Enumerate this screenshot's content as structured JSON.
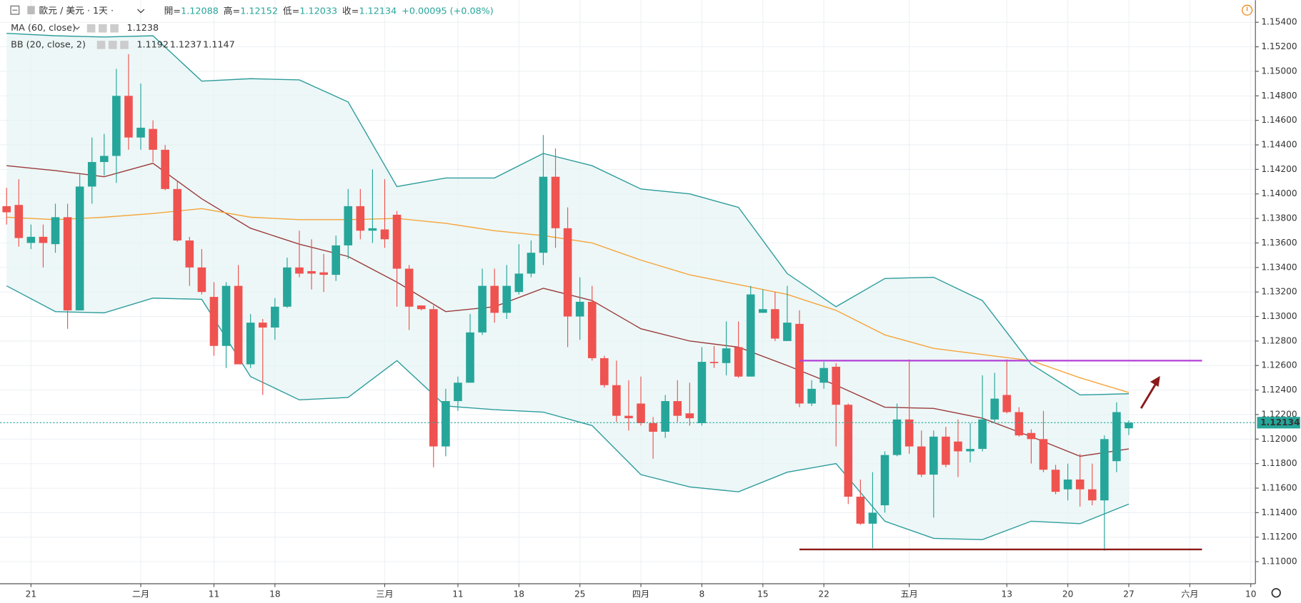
{
  "header": {
    "symbol": "歐元 / 美元 · 1天 ·",
    "open_label": "開=",
    "high_label": "高=",
    "low_label": "低=",
    "close_label": "收=",
    "change": "+0.00095 (+0.08%)"
  },
  "chart_data": {
    "type": "candlestick",
    "xlim": [
      -0.54,
      102.38
    ],
    "ylim": [
      1.1082,
      1.1558
    ],
    "yticks": [
      {
        "value": 1.11,
        "label": "1.11000"
      },
      {
        "value": 1.112,
        "label": "1.11200"
      },
      {
        "value": 1.114,
        "label": "1.11400"
      },
      {
        "value": 1.116,
        "label": "1.11600"
      },
      {
        "value": 1.118,
        "label": "1.11800"
      },
      {
        "value": 1.12,
        "label": "1.12000"
      },
      {
        "value": 1.122,
        "label": "1.12200"
      },
      {
        "value": 1.124,
        "label": "1.12400"
      },
      {
        "value": 1.126,
        "label": "1.12600"
      },
      {
        "value": 1.128,
        "label": "1.12800"
      },
      {
        "value": 1.13,
        "label": "1.13000"
      },
      {
        "value": 1.132,
        "label": "1.13200"
      },
      {
        "value": 1.134,
        "label": "1.13400"
      },
      {
        "value": 1.136,
        "label": "1.13600"
      },
      {
        "value": 1.138,
        "label": "1.13800"
      },
      {
        "value": 1.14,
        "label": "1.14000"
      },
      {
        "value": 1.142,
        "label": "1.14200"
      },
      {
        "value": 1.144,
        "label": "1.14400"
      },
      {
        "value": 1.146,
        "label": "1.14600"
      },
      {
        "value": 1.148,
        "label": "1.14800"
      },
      {
        "value": 1.15,
        "label": "1.15000"
      },
      {
        "value": 1.152,
        "label": "1.15200"
      },
      {
        "value": 1.154,
        "label": "1.15400"
      }
    ],
    "xticks": [
      {
        "value": 2,
        "label": "21"
      },
      {
        "value": 11,
        "label": "二月"
      },
      {
        "value": 17,
        "label": "11"
      },
      {
        "value": 22,
        "label": "18"
      },
      {
        "value": 31,
        "label": "三月"
      },
      {
        "value": 37,
        "label": "11"
      },
      {
        "value": 42,
        "label": "18"
      },
      {
        "value": 47,
        "label": "25"
      },
      {
        "value": 52,
        "label": "四月"
      },
      {
        "value": 57,
        "label": "8"
      },
      {
        "value": 62,
        "label": "15"
      },
      {
        "value": 67,
        "label": "22"
      },
      {
        "value": 74,
        "label": "五月"
      },
      {
        "value": 82,
        "label": "13"
      },
      {
        "value": 87,
        "label": "20"
      },
      {
        "value": 92,
        "label": "27"
      },
      {
        "value": 97,
        "label": "六月"
      },
      {
        "value": 102,
        "label": "10"
      }
    ],
    "up_color": "#26a69a",
    "down_color": "#ef5350",
    "grid": true,
    "candles": [
      {
        "open": 1.139,
        "high": 1.1405,
        "low": 1.1375,
        "close": 1.1385
      },
      {
        "open": 1.1391,
        "high": 1.1412,
        "low": 1.1357,
        "close": 1.1364
      },
      {
        "open": 1.136,
        "high": 1.1375,
        "low": 1.1355,
        "close": 1.1365
      },
      {
        "open": 1.1365,
        "high": 1.1375,
        "low": 1.134,
        "close": 1.136
      },
      {
        "open": 1.1359,
        "high": 1.1392,
        "low": 1.1352,
        "close": 1.1381
      },
      {
        "open": 1.1381,
        "high": 1.1392,
        "low": 1.129,
        "close": 1.1305
      },
      {
        "open": 1.1305,
        "high": 1.1416,
        "low": 1.1305,
        "close": 1.1406
      },
      {
        "open": 1.1406,
        "high": 1.1446,
        "low": 1.1392,
        "close": 1.1426
      },
      {
        "open": 1.1426,
        "high": 1.1449,
        "low": 1.1415,
        "close": 1.1431
      },
      {
        "open": 1.1431,
        "high": 1.1502,
        "low": 1.1409,
        "close": 1.148
      },
      {
        "open": 1.148,
        "high": 1.1514,
        "low": 1.1436,
        "close": 1.1446
      },
      {
        "open": 1.1446,
        "high": 1.149,
        "low": 1.1436,
        "close": 1.1454
      },
      {
        "open": 1.1453,
        "high": 1.146,
        "low": 1.1426,
        "close": 1.1436
      },
      {
        "open": 1.1436,
        "high": 1.144,
        "low": 1.1403,
        "close": 1.1404
      },
      {
        "open": 1.1404,
        "high": 1.141,
        "low": 1.1361,
        "close": 1.1362
      },
      {
        "open": 1.1362,
        "high": 1.1365,
        "low": 1.1325,
        "close": 1.134
      },
      {
        "open": 1.134,
        "high": 1.1355,
        "low": 1.1318,
        "close": 1.132
      },
      {
        "open": 1.1316,
        "high": 1.1328,
        "low": 1.1268,
        "close": 1.1276
      },
      {
        "open": 1.1276,
        "high": 1.1328,
        "low": 1.1258,
        "close": 1.1325
      },
      {
        "open": 1.1325,
        "high": 1.1342,
        "low": 1.1261,
        "close": 1.1261
      },
      {
        "open": 1.1261,
        "high": 1.1302,
        "low": 1.1258,
        "close": 1.1295
      },
      {
        "open": 1.1295,
        "high": 1.1298,
        "low": 1.1236,
        "close": 1.1291
      },
      {
        "open": 1.1291,
        "high": 1.1315,
        "low": 1.1281,
        "close": 1.1308
      },
      {
        "open": 1.1308,
        "high": 1.1348,
        "low": 1.1307,
        "close": 1.134
      },
      {
        "open": 1.134,
        "high": 1.137,
        "low": 1.1332,
        "close": 1.1335
      },
      {
        "open": 1.1337,
        "high": 1.1363,
        "low": 1.1322,
        "close": 1.1335
      },
      {
        "open": 1.1336,
        "high": 1.1351,
        "low": 1.132,
        "close": 1.1334
      },
      {
        "open": 1.1334,
        "high": 1.1366,
        "low": 1.1329,
        "close": 1.1358
      },
      {
        "open": 1.1358,
        "high": 1.1404,
        "low": 1.1347,
        "close": 1.139
      },
      {
        "open": 1.139,
        "high": 1.1404,
        "low": 1.1363,
        "close": 1.137
      },
      {
        "open": 1.137,
        "high": 1.142,
        "low": 1.136,
        "close": 1.1372
      },
      {
        "open": 1.1371,
        "high": 1.1412,
        "low": 1.1356,
        "close": 1.1363
      },
      {
        "open": 1.1383,
        "high": 1.1386,
        "low": 1.1308,
        "close": 1.1339
      },
      {
        "open": 1.1339,
        "high": 1.1342,
        "low": 1.1289,
        "close": 1.1308
      },
      {
        "open": 1.1309,
        "high": 1.1309,
        "low": 1.1305,
        "close": 1.1306
      },
      {
        "open": 1.1306,
        "high": 1.1309,
        "low": 1.1177,
        "close": 1.1194
      },
      {
        "open": 1.1194,
        "high": 1.1241,
        "low": 1.1186,
        "close": 1.1231
      },
      {
        "open": 1.1231,
        "high": 1.1251,
        "low": 1.1223,
        "close": 1.1246
      },
      {
        "open": 1.1246,
        "high": 1.1302,
        "low": 1.1246,
        "close": 1.1287
      },
      {
        "open": 1.1287,
        "high": 1.1339,
        "low": 1.1285,
        "close": 1.1325
      },
      {
        "open": 1.1325,
        "high": 1.1339,
        "low": 1.1295,
        "close": 1.1303
      },
      {
        "open": 1.1303,
        "high": 1.1342,
        "low": 1.1298,
        "close": 1.1325
      },
      {
        "open": 1.132,
        "high": 1.1359,
        "low": 1.1318,
        "close": 1.1335
      },
      {
        "open": 1.1335,
        "high": 1.1362,
        "low": 1.1332,
        "close": 1.1352
      },
      {
        "open": 1.1352,
        "high": 1.1448,
        "low": 1.1342,
        "close": 1.1414
      },
      {
        "open": 1.1414,
        "high": 1.1437,
        "low": 1.1356,
        "close": 1.1372
      },
      {
        "open": 1.1372,
        "high": 1.1389,
        "low": 1.1275,
        "close": 1.13
      },
      {
        "open": 1.13,
        "high": 1.1332,
        "low": 1.1281,
        "close": 1.1312
      },
      {
        "open": 1.1312,
        "high": 1.1325,
        "low": 1.1264,
        "close": 1.1266
      },
      {
        "open": 1.1266,
        "high": 1.1268,
        "low": 1.1242,
        "close": 1.1244
      },
      {
        "open": 1.1244,
        "high": 1.1264,
        "low": 1.1214,
        "close": 1.1219
      },
      {
        "open": 1.1219,
        "high": 1.1248,
        "low": 1.1207,
        "close": 1.1217
      },
      {
        "open": 1.1229,
        "high": 1.1251,
        "low": 1.1211,
        "close": 1.1213
      },
      {
        "open": 1.1213,
        "high": 1.1218,
        "low": 1.1184,
        "close": 1.1206
      },
      {
        "open": 1.1206,
        "high": 1.1236,
        "low": 1.1201,
        "close": 1.1231
      },
      {
        "open": 1.1231,
        "high": 1.1248,
        "low": 1.1214,
        "close": 1.1219
      },
      {
        "open": 1.1221,
        "high": 1.1246,
        "low": 1.1211,
        "close": 1.1217
      },
      {
        "open": 1.1213,
        "high": 1.1275,
        "low": 1.1211,
        "close": 1.1263
      },
      {
        "open": 1.1263,
        "high": 1.1276,
        "low": 1.1258,
        "close": 1.1262
      },
      {
        "open": 1.1262,
        "high": 1.1296,
        "low": 1.1252,
        "close": 1.1274
      },
      {
        "open": 1.1275,
        "high": 1.1296,
        "low": 1.125,
        "close": 1.1251
      },
      {
        "open": 1.1251,
        "high": 1.1325,
        "low": 1.1251,
        "close": 1.1318
      },
      {
        "open": 1.1303,
        "high": 1.1322,
        "low": 1.1303,
        "close": 1.1306
      },
      {
        "open": 1.1306,
        "high": 1.132,
        "low": 1.128,
        "close": 1.1282
      },
      {
        "open": 1.128,
        "high": 1.1325,
        "low": 1.128,
        "close": 1.1295
      },
      {
        "open": 1.1294,
        "high": 1.1305,
        "low": 1.1226,
        "close": 1.1229
      },
      {
        "open": 1.1229,
        "high": 1.1248,
        "low": 1.1227,
        "close": 1.1241
      },
      {
        "open": 1.1246,
        "high": 1.1263,
        "low": 1.1241,
        "close": 1.1258
      },
      {
        "open": 1.1259,
        "high": 1.1262,
        "low": 1.1194,
        "close": 1.1228
      },
      {
        "open": 1.1228,
        "high": 1.1229,
        "low": 1.1147,
        "close": 1.1153
      },
      {
        "open": 1.1153,
        "high": 1.1167,
        "low": 1.113,
        "close": 1.1131
      },
      {
        "open": 1.1131,
        "high": 1.1173,
        "low": 1.1111,
        "close": 1.114
      },
      {
        "open": 1.1146,
        "high": 1.119,
        "low": 1.114,
        "close": 1.1187
      },
      {
        "open": 1.1187,
        "high": 1.1229,
        "low": 1.1186,
        "close": 1.1216
      },
      {
        "open": 1.1216,
        "high": 1.1265,
        "low": 1.1188,
        "close": 1.1194
      },
      {
        "open": 1.1194,
        "high": 1.1207,
        "low": 1.1169,
        "close": 1.1171
      },
      {
        "open": 1.1171,
        "high": 1.1207,
        "low": 1.1136,
        "close": 1.1202
      },
      {
        "open": 1.1202,
        "high": 1.121,
        "low": 1.1177,
        "close": 1.1179
      },
      {
        "open": 1.1198,
        "high": 1.1216,
        "low": 1.1169,
        "close": 1.119
      },
      {
        "open": 1.119,
        "high": 1.1213,
        "low": 1.1181,
        "close": 1.1192
      },
      {
        "open": 1.1192,
        "high": 1.1252,
        "low": 1.119,
        "close": 1.1216
      },
      {
        "open": 1.1216,
        "high": 1.1254,
        "low": 1.1214,
        "close": 1.1233
      },
      {
        "open": 1.1236,
        "high": 1.1265,
        "low": 1.1221,
        "close": 1.1222
      },
      {
        "open": 1.1222,
        "high": 1.1226,
        "low": 1.1202,
        "close": 1.1203
      },
      {
        "open": 1.1205,
        "high": 1.1208,
        "low": 1.118,
        "close": 1.12
      },
      {
        "open": 1.12,
        "high": 1.1223,
        "low": 1.1173,
        "close": 1.1175
      },
      {
        "open": 1.1175,
        "high": 1.1179,
        "low": 1.1155,
        "close": 1.1157
      },
      {
        "open": 1.1159,
        "high": 1.118,
        "low": 1.115,
        "close": 1.1167
      },
      {
        "open": 1.1167,
        "high": 1.1188,
        "low": 1.1145,
        "close": 1.1159
      },
      {
        "open": 1.1159,
        "high": 1.118,
        "low": 1.1146,
        "close": 1.115
      },
      {
        "open": 1.115,
        "high": 1.1203,
        "low": 1.1109,
        "close": 1.12
      },
      {
        "open": 1.1182,
        "high": 1.123,
        "low": 1.1173,
        "close": 1.1222
      },
      {
        "open": 1.12088,
        "high": 1.12152,
        "low": 1.12033,
        "close": 1.12134
      }
    ],
    "indicators": [
      {
        "name": "MA (60, close)",
        "color": "#f5a53b",
        "x": [
          0,
          4,
          8,
          12,
          16,
          20,
          24,
          28,
          32,
          36,
          40,
          44,
          48,
          52,
          56,
          60,
          64,
          68,
          72,
          76,
          80,
          84,
          88,
          92
        ],
        "values": [
          1.1381,
          1.1379,
          1.1381,
          1.1384,
          1.1388,
          1.1381,
          1.1379,
          1.1379,
          1.138,
          1.1376,
          1.137,
          1.1366,
          1.136,
          1.1346,
          1.1334,
          1.1326,
          1.1318,
          1.1305,
          1.1285,
          1.1274,
          1.1269,
          1.1264,
          1.125,
          1.1238
        ]
      }
    ],
    "bollinger": {
      "name": "BB (20, close, 2)",
      "fill": "#e6f3f3",
      "x": [
        0,
        4,
        8,
        12,
        16,
        20,
        24,
        28,
        32,
        36,
        40,
        44,
        48,
        52,
        56,
        60,
        64,
        68,
        72,
        76,
        80,
        84,
        88,
        92
      ],
      "middle": {
        "color": "#9b3b3b",
        "values": [
          1.1423,
          1.1419,
          1.1414,
          1.1425,
          1.1396,
          1.1372,
          1.1359,
          1.1349,
          1.1328,
          1.1304,
          1.1308,
          1.1323,
          1.1313,
          1.129,
          1.128,
          1.1275,
          1.126,
          1.1244,
          1.1226,
          1.1225,
          1.1217,
          1.1202,
          1.1186,
          1.1192
        ]
      },
      "upper": {
        "color": "#2e9c9c",
        "values": [
          1.1531,
          1.1529,
          1.1528,
          1.1529,
          1.1492,
          1.1494,
          1.1493,
          1.1475,
          1.1406,
          1.1413,
          1.1413,
          1.1433,
          1.1423,
          1.1404,
          1.14,
          1.1389,
          1.1335,
          1.1308,
          1.1331,
          1.1332,
          1.1313,
          1.1261,
          1.1236,
          1.1237
        ]
      },
      "lower": {
        "color": "#2e9c9c",
        "values": [
          1.1325,
          1.1304,
          1.1303,
          1.1315,
          1.1314,
          1.1251,
          1.1232,
          1.1234,
          1.1264,
          1.1227,
          1.1224,
          1.1222,
          1.1211,
          1.1171,
          1.1161,
          1.1157,
          1.1173,
          1.118,
          1.1133,
          1.1119,
          1.1118,
          1.1133,
          1.1131,
          1.1147
        ]
      }
    },
    "levels": [
      {
        "value": 1.1264,
        "from": 65,
        "to": 98,
        "color": "#b23fd8"
      },
      {
        "value": 1.111,
        "from": 65,
        "to": 98,
        "color": "#8b1a1a"
      }
    ]
  }
}
